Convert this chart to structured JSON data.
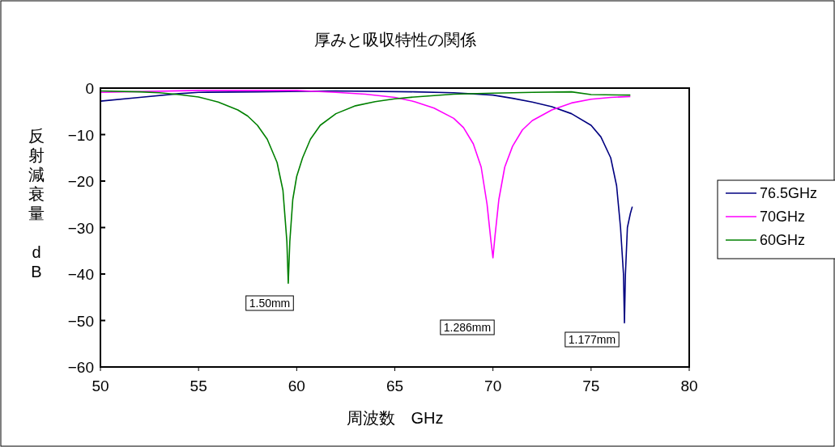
{
  "chart_data": {
    "type": "line",
    "title": "厚みと吸収特性の関係",
    "xlabel": "周波数　GHz",
    "ylabel": "反射減衰量　dB",
    "xlim": [
      50,
      80
    ],
    "xticks": [
      50,
      55,
      60,
      65,
      70,
      75,
      80
    ],
    "ylim": [
      -60,
      0
    ],
    "yticks": [
      -60,
      -50,
      -40,
      -30,
      -20,
      -10,
      0
    ],
    "grid": false,
    "legend": "right",
    "marker": "none",
    "line_style": "solid",
    "series": [
      {
        "name": "76.5GHz",
        "color": "#000080",
        "x": [
          50,
          52,
          54,
          55,
          58,
          62,
          66,
          68,
          70,
          71,
          72,
          73,
          74,
          75,
          75.5,
          76,
          76.3,
          76.5,
          76.65,
          76.7,
          76.75,
          76.85,
          77.0,
          77.1
        ],
        "values": [
          -2.8,
          -2.0,
          -1.2,
          -0.9,
          -0.8,
          -0.6,
          -0.8,
          -1.0,
          -1.5,
          -2.2,
          -3.0,
          -4.0,
          -5.5,
          -8,
          -10.5,
          -15,
          -21,
          -30,
          -40,
          -50.5,
          -40,
          -30,
          -27,
          -25.5
        ]
      },
      {
        "name": "70GHz",
        "color": "#ff00ff",
        "x": [
          50,
          55,
          60,
          60.5,
          62,
          63.5,
          65,
          66,
          67,
          68,
          68.5,
          69,
          69.4,
          69.7,
          69.9,
          70.0,
          70.1,
          70.3,
          70.6,
          71,
          71.5,
          72,
          73,
          74,
          75,
          76,
          77
        ],
        "values": [
          -0.9,
          -0.5,
          -0.5,
          -0.6,
          -0.9,
          -1.3,
          -2.0,
          -2.9,
          -4.3,
          -6.5,
          -8.5,
          -12,
          -17,
          -25,
          -33,
          -36.5,
          -32,
          -24,
          -17,
          -12.5,
          -9,
          -7,
          -4.7,
          -3.2,
          -2.4,
          -2.0,
          -1.8
        ]
      },
      {
        "name": "60GHz",
        "color": "#008000",
        "x": [
          50,
          52,
          53,
          54,
          55,
          56,
          57,
          57.5,
          58,
          58.5,
          59,
          59.3,
          59.5,
          59.57,
          59.65,
          59.8,
          60,
          60.3,
          60.7,
          61.2,
          62,
          63,
          64,
          65,
          66,
          67,
          68,
          70,
          72,
          74,
          75,
          77
        ],
        "values": [
          -0.6,
          -0.8,
          -1.0,
          -1.4,
          -1.9,
          -3.0,
          -4.7,
          -6,
          -8,
          -11,
          -16,
          -22,
          -33,
          -42,
          -33,
          -24,
          -19,
          -15,
          -11,
          -8,
          -5.5,
          -3.8,
          -2.9,
          -2.3,
          -1.9,
          -1.6,
          -1.3,
          -1.1,
          -0.9,
          -0.8,
          -1.4,
          -1.5
        ]
      }
    ],
    "annotations": [
      "1.50mm",
      "1.286mm",
      "1.177mm"
    ]
  }
}
